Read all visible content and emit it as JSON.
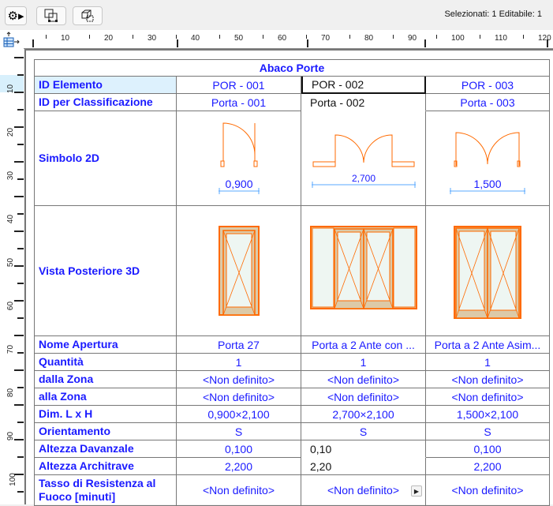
{
  "toolbar": {
    "settings_icon": "gear-icon",
    "select_icon": "select-frame-icon",
    "select3d_icon": "select-3d-icon",
    "status": "Selezionati: 1  Editabile: 1"
  },
  "ruler": {
    "h": [
      "10",
      "20",
      "30",
      "40",
      "50",
      "60",
      "70",
      "80",
      "90",
      "100",
      "110",
      "120"
    ],
    "v": [
      "10",
      "20",
      "30",
      "40",
      "50",
      "60",
      "70",
      "80",
      "90",
      "100"
    ]
  },
  "schedule": {
    "title": "Abaco Porte",
    "rows": [
      {
        "label": "ID Elemento",
        "values": [
          "POR - 001",
          "POR - 002",
          "POR - 003"
        ]
      },
      {
        "label": "ID per Classificazione",
        "values": [
          "Porta - 001",
          "Porta - 002",
          "Porta - 003"
        ]
      },
      {
        "label": "Simbolo 2D",
        "values": [
          "0,900",
          "2,700",
          "1,500"
        ]
      },
      {
        "label": "Vista Posteriore 3D",
        "values": [
          "",
          "",
          ""
        ]
      },
      {
        "label": "Nome Apertura",
        "values": [
          "Porta 27",
          "Porta a 2 Ante con ...",
          "Porta a 2 Ante Asim..."
        ]
      },
      {
        "label": "Quantità",
        "values": [
          "1",
          "1",
          "1"
        ]
      },
      {
        "label": "dalla Zona",
        "values": [
          "<Non definito>",
          "<Non definito>",
          "<Non definito>"
        ]
      },
      {
        "label": "alla Zona",
        "values": [
          "<Non definito>",
          "<Non definito>",
          "<Non definito>"
        ]
      },
      {
        "label": "Dim. L x H",
        "values": [
          "0,900×2,100",
          "2,700×2,100",
          "1,500×2,100"
        ]
      },
      {
        "label": "Orientamento",
        "values": [
          "S",
          "S",
          "S"
        ]
      },
      {
        "label": "Altezza Davanzale",
        "values": [
          "0,100",
          "0,10",
          "0,100"
        ]
      },
      {
        "label": "Altezza Architrave",
        "values": [
          "2,200",
          "2,20",
          "2,200"
        ]
      },
      {
        "label": "Tasso di Resistenza al Fuoco [minuti]",
        "values": [
          "<Non definito>",
          "<Non definito>",
          "<Non definito>"
        ]
      }
    ]
  },
  "colors": {
    "text": "#1a1aff",
    "door": "#ff6a00",
    "frame": "#dccaa8",
    "glass": "#eef6f2",
    "dim": "#5aa8ff"
  }
}
